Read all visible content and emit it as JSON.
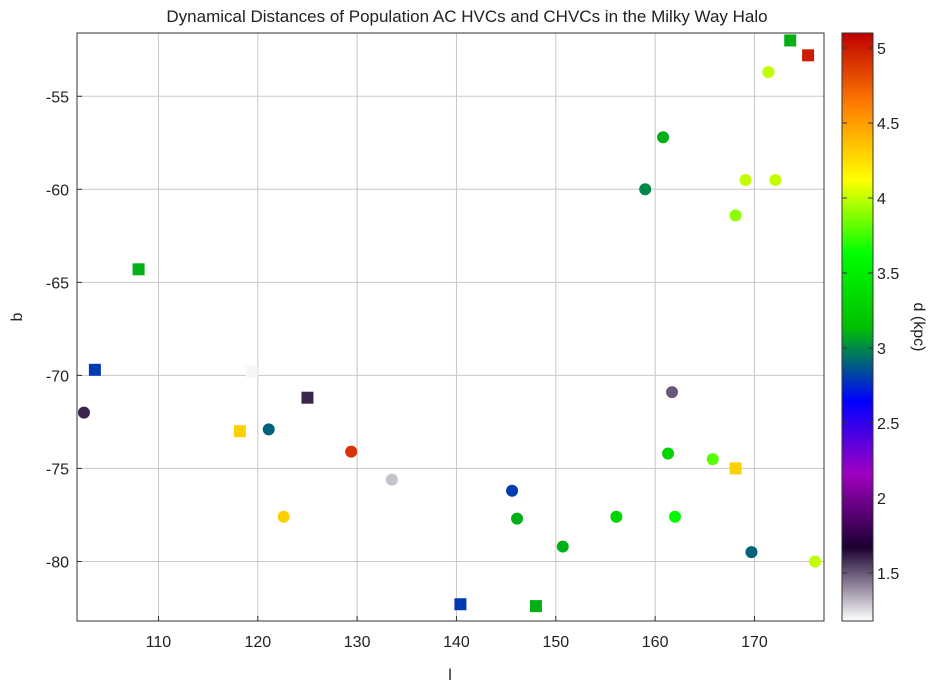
{
  "chart_data": {
    "type": "scatter",
    "title": "Dynamical Distances of Population AC HVCs and CHVCs in the Milky Way Halo",
    "xlabel": "l",
    "ylabel": "b",
    "xlim": [
      101.8,
      177.0
    ],
    "ylim": [
      -83.2,
      -51.6
    ],
    "xticks": [
      110,
      120,
      130,
      140,
      150,
      160,
      170
    ],
    "yticks": [
      -55,
      -60,
      -65,
      -70,
      -75,
      -80
    ],
    "grid": true,
    "colorbar": {
      "label": "d (kpc)",
      "range": [
        1.18,
        5.1
      ],
      "ticks": [
        1.5,
        2,
        2.5,
        3,
        3.5,
        4,
        4.5,
        5
      ],
      "tick_labels": [
        "1.5",
        "2",
        "2.5",
        "3",
        "3.5",
        "4",
        "4.5",
        "5"
      ],
      "colors": [
        "#ffffff",
        "#1a0030",
        "#a000c0",
        "#0000ff",
        "#00c000",
        "#00ff00",
        "#ffff00",
        "#ff8000",
        "#c00000"
      ]
    },
    "series": [
      {
        "marker": "square",
        "points": [
          {
            "l": 103.6,
            "b": -69.7,
            "d": 2.8
          },
          {
            "l": 108.0,
            "b": -64.3,
            "d": 3.1
          },
          {
            "l": 118.2,
            "b": -73.0,
            "d": 4.3
          },
          {
            "l": 119.4,
            "b": -69.8,
            "d": 1.2
          },
          {
            "l": 125.0,
            "b": -71.2,
            "d": 1.6
          },
          {
            "l": 140.4,
            "b": -82.3,
            "d": 2.8
          },
          {
            "l": 148.0,
            "b": -82.4,
            "d": 3.1
          },
          {
            "l": 168.1,
            "b": -75.0,
            "d": 4.3
          },
          {
            "l": 173.6,
            "b": -52.0,
            "d": 3.1
          },
          {
            "l": 175.4,
            "b": -52.8,
            "d": 5.0
          }
        ]
      },
      {
        "marker": "circle",
        "points": [
          {
            "l": 102.5,
            "b": -72.0,
            "d": 1.6
          },
          {
            "l": 121.1,
            "b": -72.9,
            "d": 2.9
          },
          {
            "l": 122.6,
            "b": -77.6,
            "d": 4.3
          },
          {
            "l": 129.4,
            "b": -74.1,
            "d": 4.9
          },
          {
            "l": 133.5,
            "b": -75.6,
            "d": 1.3
          },
          {
            "l": 145.6,
            "b": -76.2,
            "d": 2.8
          },
          {
            "l": 146.1,
            "b": -77.7,
            "d": 3.1
          },
          {
            "l": 150.7,
            "b": -79.2,
            "d": 3.1
          },
          {
            "l": 156.1,
            "b": -77.6,
            "d": 3.3
          },
          {
            "l": 159.0,
            "b": -60.0,
            "d": 3.0
          },
          {
            "l": 160.8,
            "b": -57.2,
            "d": 3.1
          },
          {
            "l": 161.3,
            "b": -74.2,
            "d": 3.3
          },
          {
            "l": 161.7,
            "b": -70.9,
            "d": 1.5
          },
          {
            "l": 162.0,
            "b": -77.6,
            "d": 3.6
          },
          {
            "l": 165.8,
            "b": -74.5,
            "d": 3.8
          },
          {
            "l": 168.1,
            "b": -61.4,
            "d": 3.9
          },
          {
            "l": 169.1,
            "b": -59.5,
            "d": 4.0
          },
          {
            "l": 169.7,
            "b": -79.5,
            "d": 2.9
          },
          {
            "l": 171.4,
            "b": -53.7,
            "d": 4.0
          },
          {
            "l": 172.1,
            "b": -59.5,
            "d": 4.0
          },
          {
            "l": 176.1,
            "b": -80.0,
            "d": 4.0
          }
        ]
      }
    ]
  }
}
